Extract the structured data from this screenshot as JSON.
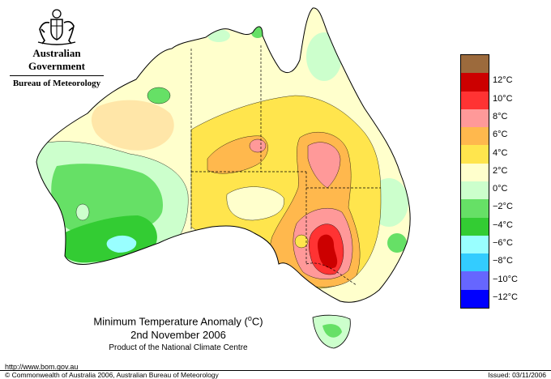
{
  "header": {
    "government": "Australian Government",
    "bureau": "Bureau of Meteorology",
    "crest_icon": "coat-of-arms-icon"
  },
  "map": {
    "title_prefix": "Minimum Temperature Anomaly (",
    "title_unit_sup": "o",
    "title_unit": "C)",
    "date": "2nd November 2006",
    "producer": "Product of the National Climate Centre"
  },
  "legend": {
    "items": [
      {
        "label": "",
        "color": "#9c6a3c"
      },
      {
        "label": "12°C",
        "color": "#cc0000"
      },
      {
        "label": "10°C",
        "color": "#ff3333"
      },
      {
        "label": "8°C",
        "color": "#ff9999"
      },
      {
        "label": "6°C",
        "color": "#ffb84d"
      },
      {
        "label": "4°C",
        "color": "#ffe54d"
      },
      {
        "label": "2°C",
        "color": "#ffffcc"
      },
      {
        "label": "0°C",
        "color": "#ccffcc"
      },
      {
        "label": "−2°C",
        "color": "#66e066"
      },
      {
        "label": "−4°C",
        "color": "#33cc33"
      },
      {
        "label": "−6°C",
        "color": "#99ffff"
      },
      {
        "label": "−8°C",
        "color": "#33ccff"
      },
      {
        "label": "−10°C",
        "color": "#6666ff"
      },
      {
        "label": "−12°C",
        "color": "#0000ff"
      }
    ]
  },
  "footer": {
    "url": "http://www.bom.gov.au",
    "copyright": "© Commonwealth of Australia 2006, Australian Bureau of Meteorology",
    "issued": "Issued: 03/11/2006"
  }
}
